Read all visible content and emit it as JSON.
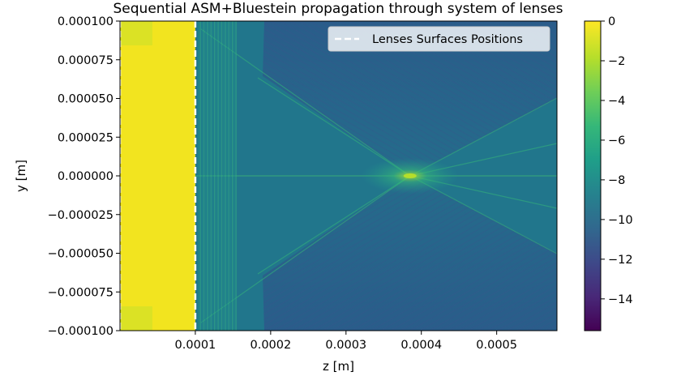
{
  "chart_data": {
    "type": "heatmap",
    "title": "Sequential ASM+Bluestein propagation through system of lenses",
    "xlabel": "z [m]",
    "ylabel": "y [m]",
    "xlim": [
      0.0,
      0.00058
    ],
    "ylim": [
      -0.0001,
      0.0001
    ],
    "x_ticks": [
      {
        "value": 0.0001,
        "label": "0.0001"
      },
      {
        "value": 0.0002,
        "label": "0.0002"
      },
      {
        "value": 0.0003,
        "label": "0.0003"
      },
      {
        "value": 0.0004,
        "label": "0.0004"
      },
      {
        "value": 0.0005,
        "label": "0.0005"
      }
    ],
    "y_ticks": [
      {
        "value": 0.0001,
        "label": "0.000100"
      },
      {
        "value": 7.5e-05,
        "label": "0.000075"
      },
      {
        "value": 5e-05,
        "label": "0.000050"
      },
      {
        "value": 2.5e-05,
        "label": "0.000025"
      },
      {
        "value": 0.0,
        "label": "0.000000"
      },
      {
        "value": -2.5e-05,
        "label": "−0.000025"
      },
      {
        "value": -5e-05,
        "label": "−0.000050"
      },
      {
        "value": -7.5e-05,
        "label": "−0.000075"
      },
      {
        "value": -0.0001,
        "label": "−0.000100"
      }
    ],
    "colorbar": {
      "colormap": "viridis",
      "range": [
        -15.6,
        0
      ],
      "ticks": [
        {
          "value": 0,
          "label": "0"
        },
        {
          "value": -2,
          "label": "−2"
        },
        {
          "value": -4,
          "label": "−4"
        },
        {
          "value": -6,
          "label": "−6"
        },
        {
          "value": -8,
          "label": "−8"
        },
        {
          "value": -10,
          "label": "−10"
        },
        {
          "value": -12,
          "label": "−12"
        },
        {
          "value": -14,
          "label": "−14"
        }
      ]
    },
    "lens_surface_positions": [
      0.0,
      0.0001
    ],
    "focus": {
      "z": 0.000385,
      "y": 0.0
    },
    "legend": {
      "placement": "top-right",
      "entries": [
        {
          "label": "Lenses Surfaces Positions",
          "style": "white dashed line"
        }
      ]
    },
    "grid": false
  }
}
